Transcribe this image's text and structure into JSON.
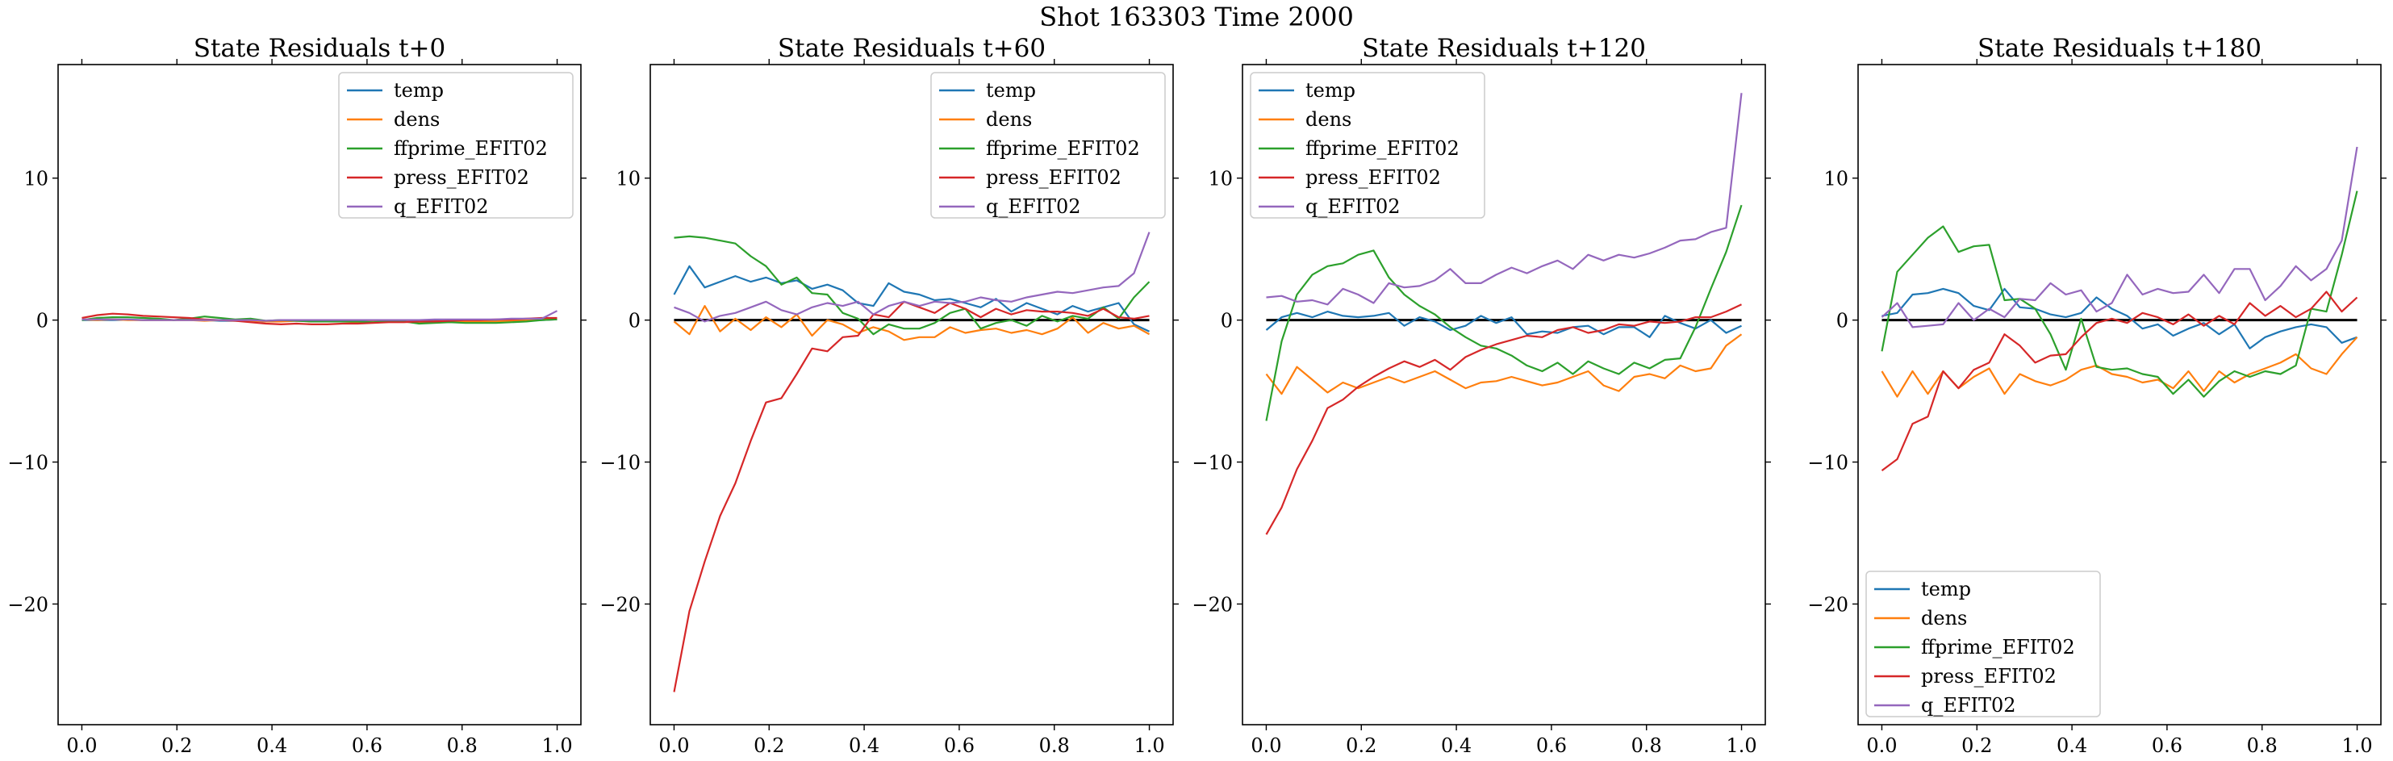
{
  "suptitle": "Shot 163303   Time 2000",
  "colors": {
    "temp": "#1f77b4",
    "dens": "#ff7f0e",
    "ffprime_EFIT02": "#2ca02c",
    "press_EFIT02": "#d62728",
    "q_EFIT02": "#9467bd",
    "zero_line": "#000000"
  },
  "chart_data": [
    {
      "type": "line",
      "title": "State Residuals t+0",
      "legend": "top-right",
      "zero_line": false,
      "xlim": [
        -0.05,
        1.05
      ],
      "ylim": [
        -28.5,
        18
      ],
      "x_ticks": [
        0.0,
        0.2,
        0.4,
        0.6,
        0.8,
        1.0
      ],
      "x_tick_labels": [
        "0.0",
        "0.2",
        "0.4",
        "0.6",
        "0.8",
        "1.0"
      ],
      "y_ticks": [
        -20,
        -10,
        0,
        10
      ],
      "y_tick_labels": [
        "−20",
        "−10",
        "0",
        "10"
      ],
      "x": [
        0.0,
        0.0323,
        0.0645,
        0.0968,
        0.129,
        0.1613,
        0.1935,
        0.2258,
        0.2581,
        0.2903,
        0.3226,
        0.3548,
        0.3871,
        0.4194,
        0.4516,
        0.4839,
        0.5161,
        0.5484,
        0.5806,
        0.6129,
        0.6452,
        0.6774,
        0.7097,
        0.7419,
        0.7742,
        0.8065,
        0.8387,
        0.871,
        0.9032,
        0.9355,
        0.9677,
        1.0
      ],
      "series": [
        {
          "name": "temp",
          "values": [
            0.0,
            0.0,
            0.0,
            0.02,
            0.0,
            0.0,
            0.0,
            0.0,
            0.0,
            -0.05,
            -0.05,
            -0.05,
            -0.1,
            -0.05,
            -0.05,
            -0.05,
            -0.05,
            -0.1,
            -0.1,
            -0.1,
            -0.1,
            -0.05,
            -0.1,
            -0.05,
            -0.1,
            -0.1,
            -0.05,
            -0.05,
            -0.05,
            -0.05,
            0.0,
            0.05
          ]
        },
        {
          "name": "dens",
          "values": [
            0.05,
            0.0,
            0.05,
            0.0,
            0.0,
            0.0,
            0.0,
            0.0,
            -0.05,
            0.0,
            0.0,
            -0.05,
            -0.1,
            -0.1,
            -0.05,
            -0.1,
            -0.1,
            -0.1,
            -0.15,
            -0.1,
            -0.1,
            -0.1,
            -0.15,
            -0.1,
            -0.1,
            -0.1,
            -0.1,
            -0.1,
            -0.05,
            0.0,
            0.05,
            0.1
          ]
        },
        {
          "name": "ffprime_EFIT02",
          "values": [
            0.0,
            0.15,
            0.2,
            0.2,
            0.15,
            0.1,
            0.0,
            0.1,
            0.25,
            0.15,
            0.05,
            0.1,
            -0.05,
            0.0,
            -0.05,
            -0.1,
            -0.1,
            -0.1,
            -0.1,
            -0.15,
            -0.05,
            -0.1,
            -0.25,
            -0.2,
            -0.15,
            -0.2,
            -0.2,
            -0.2,
            -0.15,
            -0.1,
            0.0,
            0.05
          ]
        },
        {
          "name": "press_EFIT02",
          "values": [
            0.15,
            0.35,
            0.45,
            0.4,
            0.3,
            0.25,
            0.2,
            0.15,
            0.05,
            0.0,
            -0.05,
            -0.15,
            -0.25,
            -0.3,
            -0.25,
            -0.3,
            -0.3,
            -0.25,
            -0.25,
            -0.2,
            -0.15,
            -0.15,
            -0.1,
            -0.1,
            -0.05,
            0.0,
            0.0,
            0.05,
            0.05,
            0.1,
            0.15,
            0.15
          ]
        },
        {
          "name": "q_EFIT02",
          "values": [
            0.05,
            0.05,
            0.05,
            0.05,
            0.0,
            0.0,
            0.0,
            0.0,
            0.0,
            0.0,
            0.0,
            0.0,
            -0.05,
            0.0,
            0.0,
            0.0,
            0.0,
            0.0,
            0.0,
            0.0,
            0.0,
            0.0,
            0.0,
            0.05,
            0.05,
            0.05,
            0.05,
            0.05,
            0.1,
            0.1,
            0.1,
            0.65
          ]
        }
      ]
    },
    {
      "type": "line",
      "title": "State Residuals t+60",
      "legend": "top-right",
      "zero_line": true,
      "xlim": [
        -0.05,
        1.05
      ],
      "ylim": [
        -28.5,
        18
      ],
      "x_ticks": [
        0.0,
        0.2,
        0.4,
        0.6,
        0.8,
        1.0
      ],
      "x_tick_labels": [
        "0.0",
        "0.2",
        "0.4",
        "0.6",
        "0.8",
        "1.0"
      ],
      "y_ticks": [
        -20,
        -10,
        0,
        10
      ],
      "y_tick_labels": [
        "−20",
        "−10",
        "0",
        "10"
      ],
      "x": [
        0.0,
        0.0323,
        0.0645,
        0.0968,
        0.129,
        0.1613,
        0.1935,
        0.2258,
        0.2581,
        0.2903,
        0.3226,
        0.3548,
        0.3871,
        0.4194,
        0.4516,
        0.4839,
        0.5161,
        0.5484,
        0.5806,
        0.6129,
        0.6452,
        0.6774,
        0.7097,
        0.7419,
        0.7742,
        0.8065,
        0.8387,
        0.871,
        0.9032,
        0.9355,
        0.9677,
        1.0
      ],
      "series": [
        {
          "name": "temp",
          "values": [
            1.8,
            3.8,
            2.3,
            2.7,
            3.1,
            2.7,
            3.0,
            2.6,
            2.8,
            2.2,
            2.5,
            2.1,
            1.2,
            1.0,
            2.6,
            2.0,
            1.8,
            1.4,
            1.5,
            1.2,
            0.9,
            1.5,
            0.6,
            1.2,
            0.8,
            0.4,
            1.0,
            0.6,
            0.9,
            1.2,
            -0.3,
            -0.8
          ]
        },
        {
          "name": "dens",
          "values": [
            -0.1,
            -1.0,
            1.0,
            -0.8,
            0.1,
            -0.7,
            0.2,
            -0.5,
            0.4,
            -1.1,
            0.0,
            -0.3,
            -0.9,
            -0.5,
            -0.8,
            -1.4,
            -1.2,
            -1.2,
            -0.5,
            -0.9,
            -0.7,
            -0.6,
            -0.9,
            -0.7,
            -1.0,
            -0.6,
            0.2,
            -0.9,
            -0.2,
            -0.6,
            -0.4,
            -1.0
          ]
        },
        {
          "name": "ffprime_EFIT02",
          "values": [
            5.8,
            5.9,
            5.8,
            5.6,
            5.4,
            4.5,
            3.8,
            2.5,
            3.0,
            1.9,
            1.8,
            0.5,
            0.1,
            -1.0,
            -0.3,
            -0.6,
            -0.6,
            -0.2,
            0.5,
            0.8,
            -0.6,
            -0.2,
            0.0,
            -0.4,
            0.3,
            -0.1,
            0.3,
            0.1,
            0.9,
            0.1,
            1.6,
            2.7
          ]
        },
        {
          "name": "press_EFIT02",
          "values": [
            -26.2,
            -20.5,
            -17.0,
            -13.8,
            -11.5,
            -8.5,
            -5.8,
            -5.5,
            -3.8,
            -2.0,
            -2.2,
            -1.2,
            -1.1,
            0.4,
            0.2,
            1.3,
            0.9,
            0.5,
            1.2,
            0.8,
            0.2,
            0.8,
            0.4,
            0.7,
            0.6,
            0.6,
            0.5,
            0.3,
            0.8,
            0.2,
            0.1,
            0.3
          ]
        },
        {
          "name": "q_EFIT02",
          "values": [
            0.9,
            0.5,
            -0.1,
            0.3,
            0.5,
            0.9,
            1.3,
            0.7,
            0.4,
            0.9,
            1.2,
            1.0,
            1.3,
            0.4,
            1.0,
            1.3,
            1.0,
            1.3,
            1.2,
            1.3,
            1.6,
            1.4,
            1.3,
            1.6,
            1.8,
            2.0,
            1.9,
            2.1,
            2.3,
            2.4,
            3.3,
            6.2
          ]
        }
      ]
    },
    {
      "type": "line",
      "title": "State Residuals t+120",
      "legend": "top-left",
      "zero_line": true,
      "xlim": [
        -0.05,
        1.05
      ],
      "ylim": [
        -28.5,
        18
      ],
      "x_ticks": [
        0.0,
        0.2,
        0.4,
        0.6,
        0.8,
        1.0
      ],
      "x_tick_labels": [
        "0.0",
        "0.2",
        "0.4",
        "0.6",
        "0.8",
        "1.0"
      ],
      "y_ticks": [
        -20,
        -10,
        0,
        10
      ],
      "y_tick_labels": [
        "−20",
        "−10",
        "0",
        "10"
      ],
      "x": [
        0.0,
        0.0323,
        0.0645,
        0.0968,
        0.129,
        0.1613,
        0.1935,
        0.2258,
        0.2581,
        0.2903,
        0.3226,
        0.3548,
        0.3871,
        0.4194,
        0.4516,
        0.4839,
        0.5161,
        0.5484,
        0.5806,
        0.6129,
        0.6452,
        0.6774,
        0.7097,
        0.7419,
        0.7742,
        0.8065,
        0.8387,
        0.871,
        0.9032,
        0.9355,
        0.9677,
        1.0
      ],
      "series": [
        {
          "name": "temp",
          "values": [
            -0.7,
            0.2,
            0.5,
            0.2,
            0.6,
            0.3,
            0.2,
            0.3,
            0.5,
            -0.4,
            0.2,
            -0.1,
            -0.7,
            -0.4,
            0.3,
            -0.2,
            0.2,
            -1.0,
            -0.8,
            -0.9,
            -0.5,
            -0.4,
            -1.0,
            -0.5,
            -0.5,
            -1.2,
            0.3,
            -0.2,
            -0.6,
            0.0,
            -0.9,
            -0.4
          ]
        },
        {
          "name": "dens",
          "values": [
            -3.8,
            -5.2,
            -3.3,
            -4.2,
            -5.1,
            -4.4,
            -4.8,
            -4.4,
            -4.0,
            -4.4,
            -4.0,
            -3.6,
            -4.2,
            -4.8,
            -4.4,
            -4.3,
            -4.0,
            -4.3,
            -4.6,
            -4.4,
            -4.0,
            -3.6,
            -4.6,
            -5.0,
            -4.0,
            -3.8,
            -4.1,
            -3.2,
            -3.6,
            -3.4,
            -1.8,
            -1.0
          ]
        },
        {
          "name": "ffprime_EFIT02",
          "values": [
            -7.1,
            -1.5,
            1.8,
            3.2,
            3.8,
            4.0,
            4.6,
            4.9,
            3.0,
            1.8,
            1.0,
            0.4,
            -0.5,
            -1.2,
            -1.8,
            -2.0,
            -2.5,
            -3.2,
            -3.6,
            -3.0,
            -3.8,
            -2.9,
            -3.4,
            -3.8,
            -3.0,
            -3.4,
            -2.8,
            -2.7,
            -0.5,
            2.2,
            4.8,
            8.1
          ]
        },
        {
          "name": "press_EFIT02",
          "values": [
            -15.1,
            -13.2,
            -10.5,
            -8.5,
            -6.2,
            -5.6,
            -4.7,
            -4.0,
            -3.4,
            -2.9,
            -3.3,
            -2.8,
            -3.5,
            -2.6,
            -2.1,
            -1.7,
            -1.4,
            -1.1,
            -1.2,
            -0.7,
            -0.5,
            -0.9,
            -0.7,
            -0.3,
            -0.4,
            -0.1,
            -0.2,
            -0.1,
            0.2,
            0.2,
            0.6,
            1.1
          ]
        },
        {
          "name": "q_EFIT02",
          "values": [
            1.6,
            1.7,
            1.3,
            1.4,
            1.1,
            2.2,
            1.8,
            1.2,
            2.6,
            2.3,
            2.4,
            2.8,
            3.6,
            2.6,
            2.6,
            3.2,
            3.7,
            3.3,
            3.8,
            4.2,
            3.6,
            4.6,
            4.2,
            4.6,
            4.4,
            4.7,
            5.1,
            5.6,
            5.7,
            6.2,
            6.5,
            16.0
          ]
        }
      ]
    },
    {
      "type": "line",
      "title": "State Residuals t+180",
      "legend": "bottom-left",
      "zero_line": true,
      "xlim": [
        -0.05,
        1.05
      ],
      "ylim": [
        -28.5,
        18
      ],
      "x_ticks": [
        0.0,
        0.2,
        0.4,
        0.6,
        0.8,
        1.0
      ],
      "x_tick_labels": [
        "0.0",
        "0.2",
        "0.4",
        "0.6",
        "0.8",
        "1.0"
      ],
      "y_ticks": [
        -20,
        -10,
        0,
        10
      ],
      "y_tick_labels": [
        "−20",
        "−10",
        "0",
        "10"
      ],
      "x": [
        0.0,
        0.0323,
        0.0645,
        0.0968,
        0.129,
        0.1613,
        0.1935,
        0.2258,
        0.2581,
        0.2903,
        0.3226,
        0.3548,
        0.3871,
        0.4194,
        0.4516,
        0.4839,
        0.5161,
        0.5484,
        0.5806,
        0.6129,
        0.6452,
        0.6774,
        0.7097,
        0.7419,
        0.7742,
        0.8065,
        0.8387,
        0.871,
        0.9032,
        0.9355,
        0.9677,
        1.0
      ],
      "series": [
        {
          "name": "temp",
          "values": [
            0.3,
            0.5,
            1.8,
            1.9,
            2.2,
            1.9,
            1.0,
            0.7,
            2.2,
            0.9,
            0.8,
            0.4,
            0.2,
            0.5,
            1.6,
            0.8,
            0.3,
            -0.6,
            -0.3,
            -1.1,
            -0.6,
            -0.2,
            -1.0,
            -0.3,
            -2.0,
            -1.2,
            -0.8,
            -0.5,
            -0.3,
            -0.5,
            -1.6,
            -1.2
          ]
        },
        {
          "name": "dens",
          "values": [
            -3.6,
            -5.4,
            -3.6,
            -5.2,
            -3.6,
            -4.8,
            -4.0,
            -3.4,
            -5.2,
            -3.8,
            -4.3,
            -4.6,
            -4.2,
            -3.5,
            -3.2,
            -3.8,
            -4.0,
            -4.4,
            -4.2,
            -4.8,
            -3.6,
            -5.0,
            -3.6,
            -4.4,
            -3.8,
            -3.4,
            -3.0,
            -2.4,
            -3.4,
            -3.8,
            -2.4,
            -1.2
          ]
        },
        {
          "name": "ffprime_EFIT02",
          "values": [
            -2.2,
            3.4,
            4.6,
            5.8,
            6.6,
            4.8,
            5.2,
            5.3,
            1.4,
            1.5,
            0.8,
            -1.0,
            -3.5,
            0.1,
            -3.3,
            -3.5,
            -3.4,
            -3.8,
            -4.0,
            -5.2,
            -4.2,
            -5.4,
            -4.3,
            -3.6,
            -4.0,
            -3.6,
            -3.8,
            -3.2,
            0.8,
            0.6,
            4.6,
            9.1
          ]
        },
        {
          "name": "press_EFIT02",
          "values": [
            -10.6,
            -9.8,
            -7.3,
            -6.8,
            -3.6,
            -4.8,
            -3.5,
            -3.0,
            -1.0,
            -1.8,
            -3.0,
            -2.5,
            -2.4,
            -1.2,
            -0.2,
            0.1,
            -0.2,
            0.5,
            0.2,
            -0.3,
            0.4,
            -0.4,
            0.3,
            -0.3,
            1.2,
            0.3,
            1.0,
            0.2,
            0.8,
            2.0,
            0.6,
            1.6
          ]
        },
        {
          "name": "q_EFIT02",
          "values": [
            0.2,
            1.2,
            -0.5,
            -0.4,
            -0.3,
            1.2,
            0.0,
            0.8,
            0.2,
            1.5,
            1.4,
            2.6,
            1.8,
            2.1,
            0.6,
            1.2,
            3.2,
            1.8,
            2.2,
            1.9,
            2.0,
            3.2,
            1.9,
            3.6,
            3.6,
            1.4,
            2.4,
            3.8,
            2.8,
            3.6,
            5.6,
            12.2
          ]
        }
      ]
    }
  ]
}
